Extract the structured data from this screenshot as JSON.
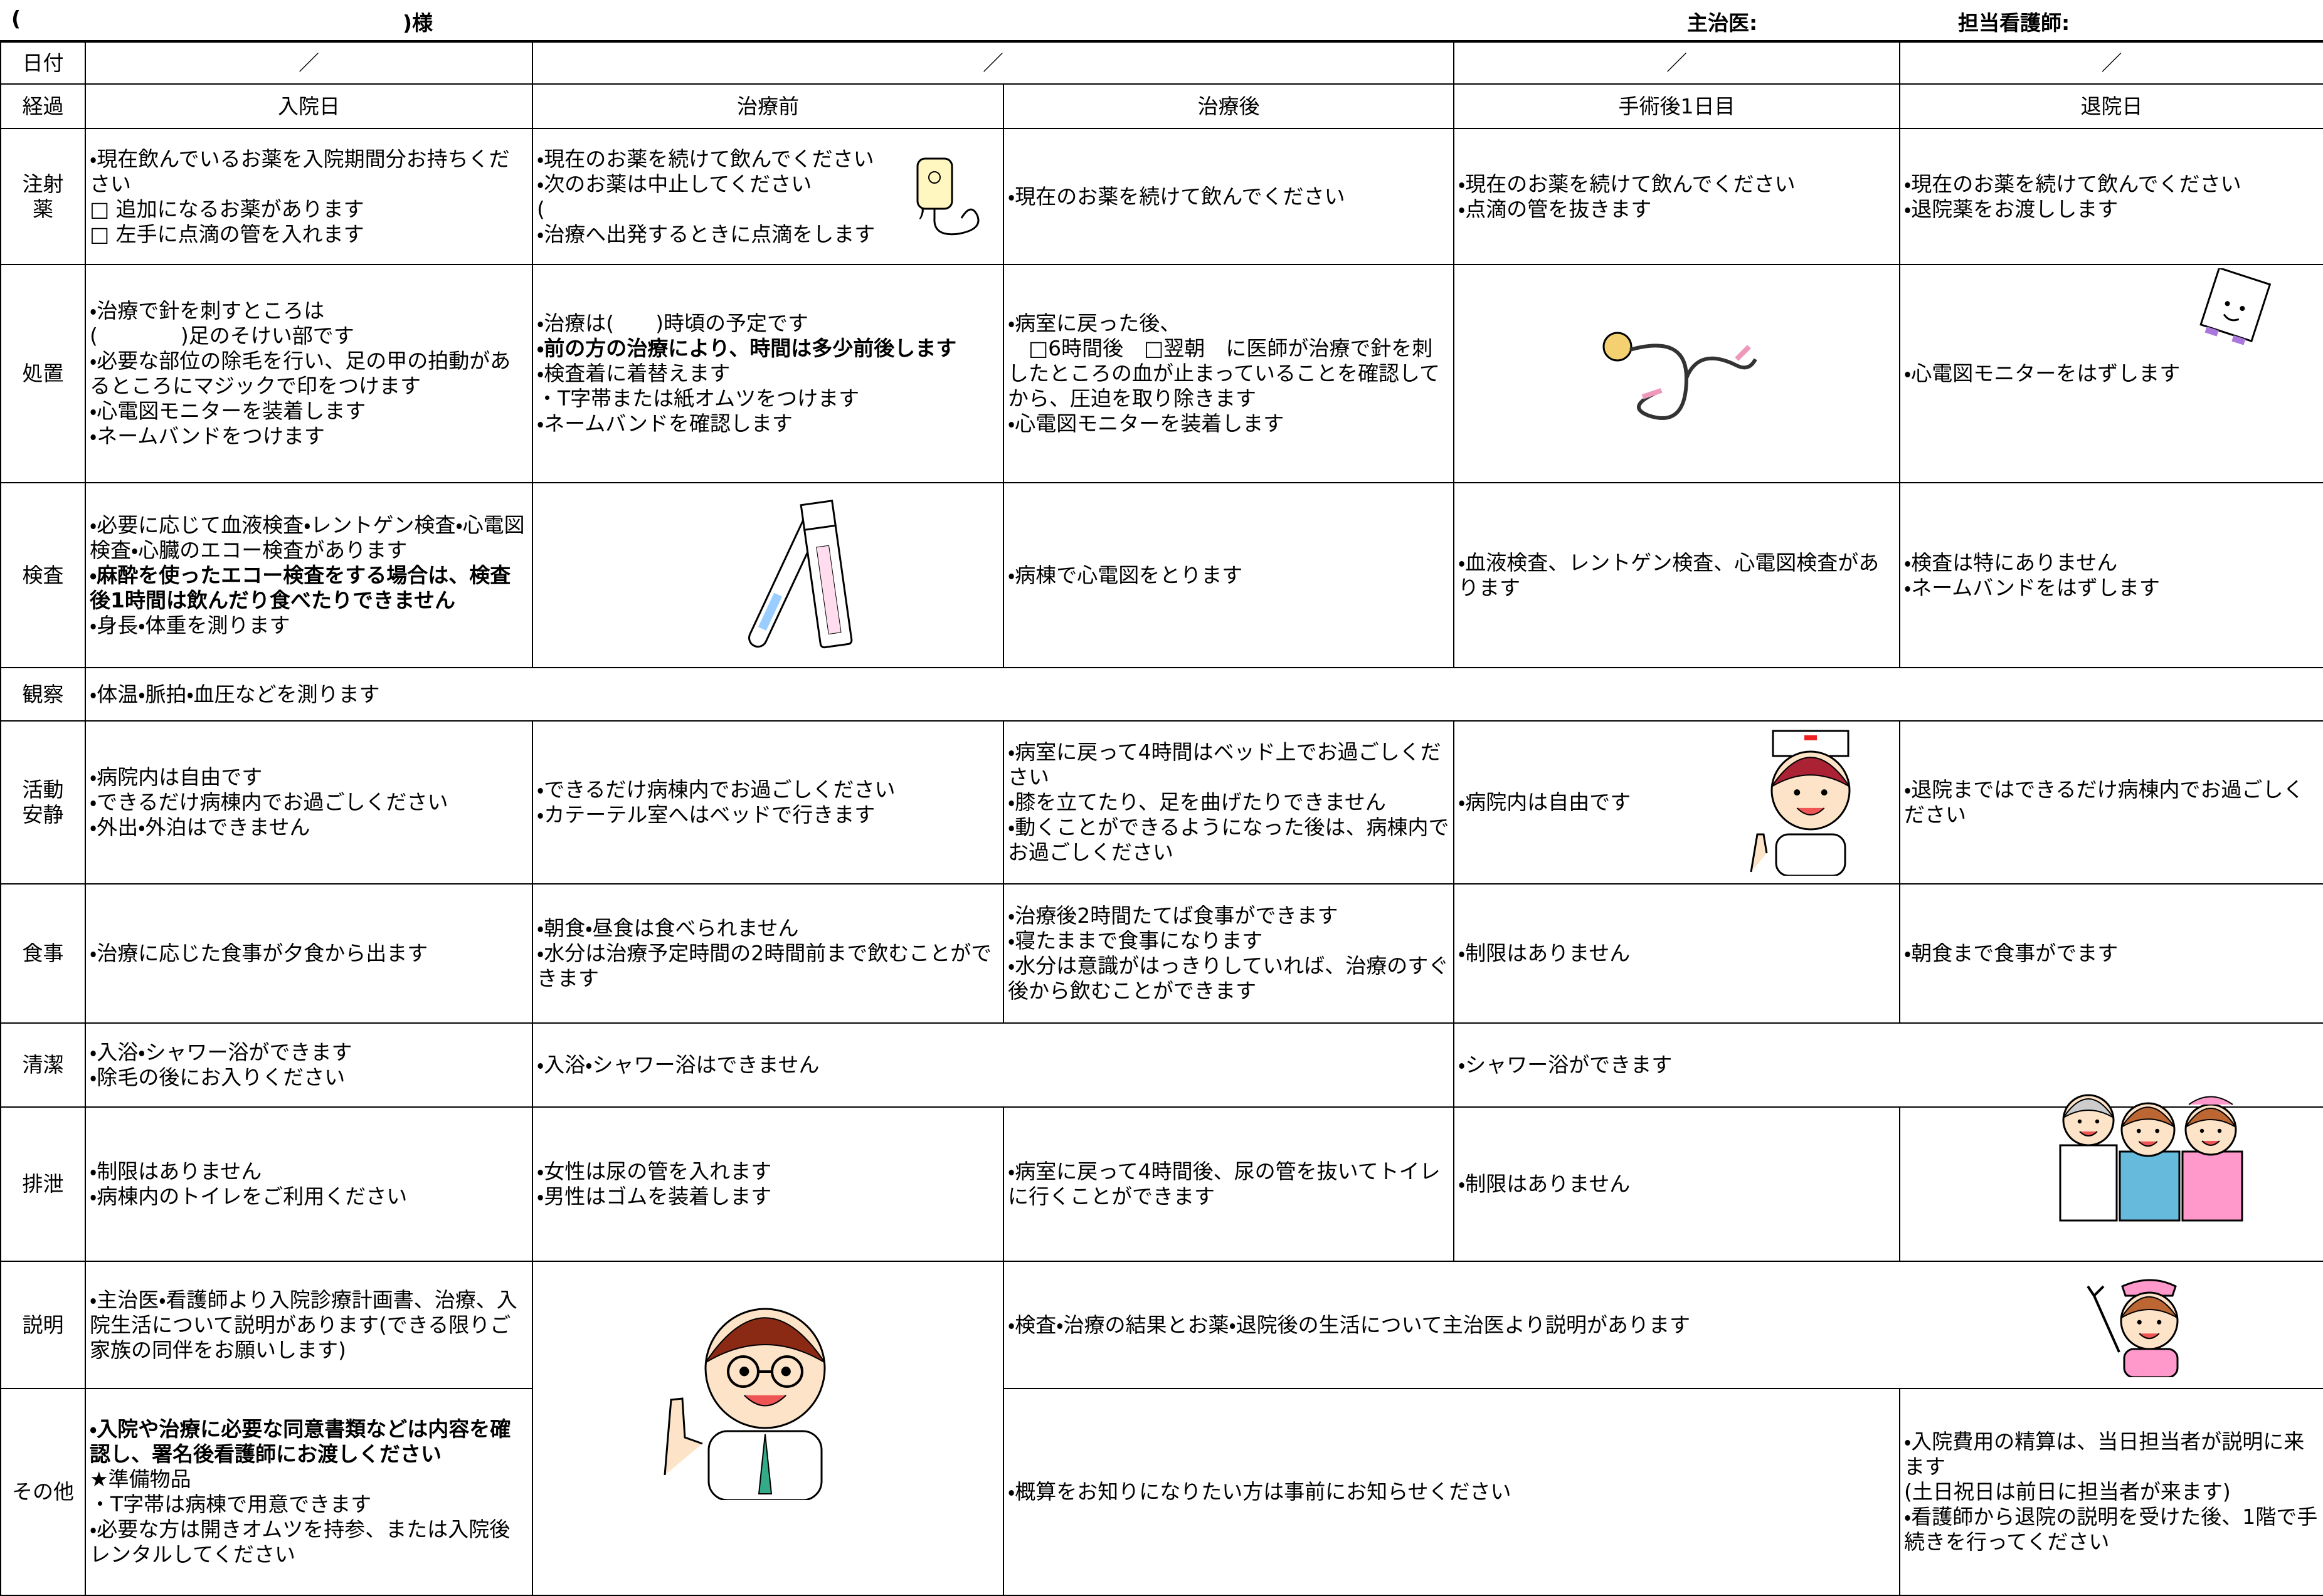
{
  "header": {
    "patient_open": "(",
    "patient_suffix": ")様",
    "doctor": "主治医:",
    "nurse": "担当看護師:"
  },
  "table": {
    "rows": [
      {
        "label": [
          "日付"
        ],
        "cells": [
          "／",
          "／",
          "／",
          "／"
        ]
      },
      {
        "label": [
          "経過"
        ],
        "cells": [
          "入院日",
          "治療前",
          "治療後",
          "手術後1日目",
          "退院日"
        ]
      },
      {
        "label": [
          "注射",
          "薬"
        ],
        "cells": [
          [
            "・現在飲んでいるお薬を入院期間分お持ちください",
            "□ 追加になるお薬があります",
            "□ 左手に点滴の管を入れます"
          ],
          [
            "・現在のお薬を続けて飲んでください",
            "・次のお薬は中止してください",
            "(　　　　　　　　　　　　　　　　　　)",
            "・治療へ出発するときに点滴をします"
          ],
          [
            "・現在のお薬を続けて飲んでください"
          ],
          [
            "・現在のお薬を続けて飲んでください",
            "・点滴の管を抜きます"
          ],
          [
            "・現在のお薬を続けて飲んでください",
            "・退院薬をお渡しします"
          ]
        ]
      },
      {
        "label": [
          "処置"
        ],
        "cells": [
          [
            "・治療で針を刺すところは",
            "(　　　　)足のそけい部です",
            "・必要な部位の除毛を行い、足の甲の拍動があるところにマジックで印をつけます",
            "・心電図モニターを装着します",
            "・ネームバンドをつけます"
          ],
          [
            "・治療は(　　)時頃の予定です",
            {
              "bold": "・前の方の治療により、時間は多少前後します"
            },
            "・検査着に着替えます",
            "・T字帯または紙オムツをつけます",
            "・ネームバンドを確認します"
          ],
          [
            "・病室に戻った後、",
            "　□6時間後　□翌朝　に医師が治療で針を刺したところの血が止まっていることを確認してから、圧迫を取り除きます",
            "・心電図モニターを装着します"
          ],
          [
            "・心電図モニターをはずします"
          ]
        ]
      },
      {
        "label": [
          "検査"
        ],
        "cells": [
          [
            "・必要に応じて血液検査・レントゲン検査・心電図検査・心臓のエコー検査があります",
            {
              "bold": "・麻酔を使ったエコー検査をする場合は、検査後1時間は飲んだり食べたりできません"
            },
            "・身長・体重を測ります"
          ],
          [
            "・病棟で心電図をとります"
          ],
          [
            "・血液検査、レントゲン検査、心電図検査があります"
          ],
          [
            "・検査は特にありません",
            "・ネームバンドをはずします"
          ]
        ]
      },
      {
        "label": [
          "観察"
        ],
        "cells": [
          [
            "・体温・脈拍・血圧などを測ります"
          ]
        ]
      },
      {
        "label": [
          "活動",
          "安静"
        ],
        "cells": [
          [
            "・病院内は自由です",
            "・できるだけ病棟内でお過ごしください",
            "・外出・外泊はできません"
          ],
          [
            "・できるだけ病棟内でお過ごしください",
            "・カテーテル室へはベッドで行きます"
          ],
          [
            "・病室に戻って4時間はベッド上でお過ごしください",
            "・膝を立てたり、足を曲げたりできません",
            "・動くことができるようになった後は、病棟内でお過ごしください"
          ],
          [
            "・病院内は自由です"
          ],
          [
            "・退院まではできるだけ病棟内でお過ごしください"
          ]
        ]
      },
      {
        "label": [
          "食事"
        ],
        "cells": [
          [
            "・治療に応じた食事が夕食から出ます"
          ],
          [
            "・朝食・昼食は食べられません",
            "・水分は治療予定時間の2時間前まで飲むことができます"
          ],
          [
            "・治療後2時間たてば食事ができます",
            "・寝たままで食事になります",
            "・水分は意識がはっきりしていれば、治療のすぐ後から飲むことができます"
          ],
          [
            "・制限はありません"
          ],
          [
            "・朝食まで食事がでます"
          ]
        ]
      },
      {
        "label": [
          "清潔"
        ],
        "cells": [
          [
            "・入浴・シャワー浴ができます",
            "・除毛の後にお入りください"
          ],
          [
            "・入浴・シャワー浴はできません"
          ],
          [
            "・シャワー浴ができます"
          ]
        ]
      },
      {
        "label": [
          "排泄"
        ],
        "cells": [
          [
            "・制限はありません",
            "・病棟内のトイレをご利用ください"
          ],
          [
            "・女性は尿の管を入れます",
            "・男性はゴムを装着します"
          ],
          [
            "・病室に戻って4時間後、尿の管を抜いてトイレに行くことができます"
          ],
          [
            "・制限はありません"
          ]
        ]
      },
      {
        "label": [
          "説明"
        ],
        "cells": [
          [
            "・主治医・看護師より入院診療計画書、治療、入院生活について説明があります(できる限りご家族の同伴をお願いします)"
          ],
          [
            "・検査・治療の結果とお薬・退院後の生活について主治医より説明があります"
          ]
        ]
      },
      {
        "label": [
          "その他"
        ],
        "cells": [
          [
            {
              "bold": "・入院や治療に必要な同意書類などは内容を確認し、署名後看護師にお渡しください"
            },
            "★準備物品",
            "・T字帯は病棟で用意できます",
            "・必要な方は開きオムツを持参、または入院後レンタルしてください"
          ],
          [
            "・概算をお知りになりたい方は事前にお知らせください"
          ],
          [
            "・入院費用の精算は、当日担当者が説明に来ます",
            "(土日祝日は前日に担当者が来ます)",
            "・看護師から退院の説明を受けた後、1階で手続きを行ってください"
          ]
        ]
      }
    ]
  }
}
